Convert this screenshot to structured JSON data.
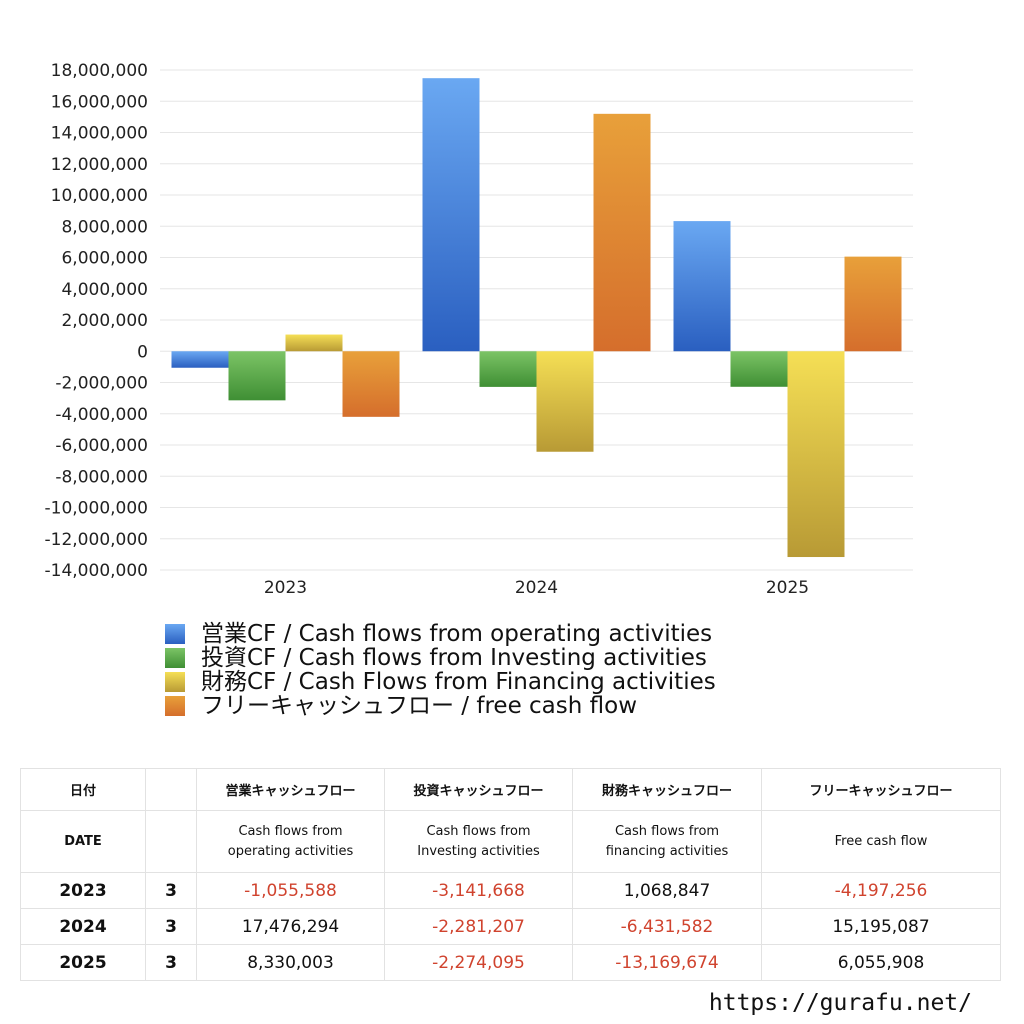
{
  "chart_data": {
    "type": "bar",
    "categories": [
      "2023",
      "2024",
      "2025"
    ],
    "series": [
      {
        "name": "営業CF / Cash flows from operating activities",
        "values": [
          -1055588,
          17476294,
          8330003
        ],
        "colors": [
          "#6aa8f2",
          "#2a5fc0"
        ]
      },
      {
        "name": "投資CF / Cash flows from Investing activities",
        "values": [
          -3141668,
          -2281207,
          -2274095
        ],
        "colors": [
          "#7cc466",
          "#3f8f34"
        ]
      },
      {
        "name": "財務CF / Cash Flows from Financing activities",
        "values": [
          1068847,
          -6431582,
          -13169674
        ],
        "colors": [
          "#f5df55",
          "#b89a35"
        ]
      },
      {
        "name": "フリーキャッシュフロー / free cash flow",
        "values": [
          -4197256,
          15195087,
          6055908
        ],
        "colors": [
          "#e8a03a",
          "#d56e2c"
        ]
      }
    ],
    "ylim": [
      -14000000,
      18000000
    ],
    "ytick_step": 2000000,
    "ytick_labels": [
      "18,000,000",
      "16,000,000",
      "14,000,000",
      "12,000,000",
      "10,000,000",
      "8,000,000",
      "6,000,000",
      "4,000,000",
      "2,000,000",
      "0",
      "-2,000,000",
      "-4,000,000",
      "-6,000,000",
      "-8,000,000",
      "-10,000,000",
      "-12,000,000",
      "-14,000,000"
    ],
    "grid": true,
    "legend": "bottom"
  },
  "table": {
    "headers_ja": [
      "日付",
      "",
      "営業キャッシュフロー",
      "投資キャッシュフロー",
      "財務キャッシュフロー",
      "フリーキャッシュフロー"
    ],
    "headers_en": [
      "DATE",
      "",
      "Cash flows from operating activities",
      "Cash flows from Investing activities",
      "Cash flows from financing activities",
      "Free cash flow"
    ],
    "headers_en_lines": [
      [
        "DATE"
      ],
      [
        ""
      ],
      [
        "Cash flows from",
        "operating activities"
      ],
      [
        "Cash flows from",
        "Investing activities"
      ],
      [
        "Cash flows from",
        "financing activities"
      ],
      [
        "Free cash flow"
      ]
    ],
    "rows": [
      {
        "year": "2023",
        "month": "3",
        "values": [
          "-1,055,588",
          "-3,141,668",
          "1,068,847",
          "-4,197,256"
        ]
      },
      {
        "year": "2024",
        "month": "3",
        "values": [
          "17,476,294",
          "-2,281,207",
          "-6,431,582",
          "15,195,087"
        ]
      },
      {
        "year": "2025",
        "month": "3",
        "values": [
          "8,330,003",
          "-2,274,095",
          "-13,169,674",
          "6,055,908"
        ]
      }
    ]
  },
  "site_url": "https://gurafu.net/"
}
